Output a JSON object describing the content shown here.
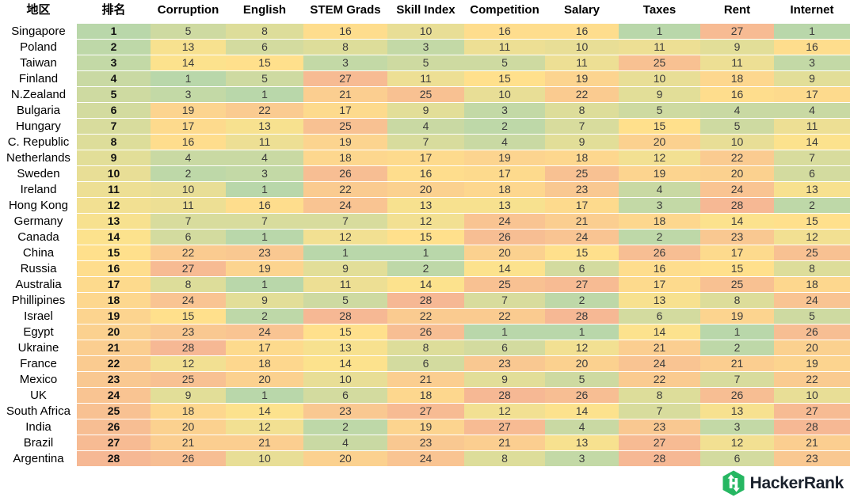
{
  "header": {
    "columns": [
      "地区",
      "排名",
      "Corruption",
      "English",
      "STEM Grads",
      "Skill Index",
      "Competition",
      "Salary",
      "Taxes",
      "Rent",
      "Internet"
    ]
  },
  "chart_data": {
    "type": "heatmap",
    "title": "",
    "row_header_label": "地区",
    "rank_label": "排名",
    "metric_columns": [
      "Corruption",
      "English",
      "STEM Grads",
      "Skill Index",
      "Competition",
      "Salary",
      "Taxes",
      "Rent",
      "Internet"
    ],
    "value_range": [
      1,
      28
    ],
    "legend": "lower rank = green, mid = yellow, high = salmon",
    "color_scale": {
      "low_color": "#b9d7aa",
      "mid_color": "#ffe28c",
      "high_color": "#f6b894",
      "low_value": 1,
      "mid_value": 14.5,
      "high_value": 28
    },
    "rows": [
      {
        "country": "Singapore",
        "rank": 1,
        "values": [
          5,
          8,
          16,
          10,
          16,
          16,
          1,
          27,
          1
        ]
      },
      {
        "country": "Poland",
        "rank": 2,
        "values": [
          13,
          6,
          8,
          3,
          11,
          10,
          11,
          9,
          16
        ]
      },
      {
        "country": "Taiwan",
        "rank": 3,
        "values": [
          14,
          15,
          3,
          5,
          5,
          11,
          25,
          11,
          3
        ]
      },
      {
        "country": "Finland",
        "rank": 4,
        "values": [
          1,
          5,
          27,
          11,
          15,
          19,
          10,
          18,
          9
        ]
      },
      {
        "country": "N.Zealand",
        "rank": 5,
        "values": [
          3,
          1,
          21,
          25,
          10,
          22,
          9,
          16,
          17
        ]
      },
      {
        "country": "Bulgaria",
        "rank": 6,
        "values": [
          19,
          22,
          17,
          9,
          3,
          8,
          5,
          4,
          4
        ]
      },
      {
        "country": "Hungary",
        "rank": 7,
        "values": [
          17,
          13,
          25,
          4,
          2,
          7,
          15,
          5,
          11
        ]
      },
      {
        "country": "C. Republic",
        "rank": 8,
        "values": [
          16,
          11,
          19,
          7,
          4,
          9,
          20,
          10,
          14
        ]
      },
      {
        "country": "Netherlands",
        "rank": 9,
        "values": [
          4,
          4,
          18,
          17,
          19,
          18,
          12,
          22,
          7
        ]
      },
      {
        "country": "Sweden",
        "rank": 10,
        "values": [
          2,
          3,
          26,
          16,
          17,
          25,
          19,
          20,
          6
        ]
      },
      {
        "country": "Ireland",
        "rank": 11,
        "values": [
          10,
          1,
          22,
          20,
          18,
          23,
          4,
          24,
          13
        ]
      },
      {
        "country": "Hong Kong",
        "rank": 12,
        "values": [
          11,
          16,
          24,
          13,
          13,
          17,
          3,
          28,
          2
        ]
      },
      {
        "country": "Germany",
        "rank": 13,
        "values": [
          7,
          7,
          7,
          12,
          24,
          21,
          18,
          14,
          15
        ]
      },
      {
        "country": "Canada",
        "rank": 14,
        "values": [
          6,
          1,
          12,
          15,
          26,
          24,
          2,
          23,
          12
        ]
      },
      {
        "country": "China",
        "rank": 15,
        "values": [
          22,
          23,
          1,
          1,
          20,
          15,
          26,
          17,
          25
        ]
      },
      {
        "country": "Russia",
        "rank": 16,
        "values": [
          27,
          19,
          9,
          2,
          14,
          6,
          16,
          15,
          8
        ]
      },
      {
        "country": "Australia",
        "rank": 17,
        "values": [
          8,
          1,
          11,
          14,
          25,
          27,
          17,
          25,
          18
        ]
      },
      {
        "country": "Phillipines",
        "rank": 18,
        "values": [
          24,
          9,
          5,
          28,
          7,
          2,
          13,
          8,
          24
        ]
      },
      {
        "country": "Israel",
        "rank": 19,
        "values": [
          15,
          2,
          28,
          22,
          22,
          28,
          6,
          19,
          5
        ]
      },
      {
        "country": "Egypt",
        "rank": 20,
        "values": [
          23,
          24,
          15,
          26,
          1,
          1,
          14,
          1,
          26
        ]
      },
      {
        "country": "Ukraine",
        "rank": 21,
        "values": [
          28,
          17,
          13,
          8,
          6,
          12,
          21,
          2,
          20
        ]
      },
      {
        "country": "France",
        "rank": 22,
        "values": [
          12,
          18,
          14,
          6,
          23,
          20,
          24,
          21,
          19
        ]
      },
      {
        "country": "Mexico",
        "rank": 23,
        "values": [
          25,
          20,
          10,
          21,
          9,
          5,
          22,
          7,
          22
        ]
      },
      {
        "country": "UK",
        "rank": 24,
        "values": [
          9,
          1,
          6,
          18,
          28,
          26,
          8,
          26,
          10
        ]
      },
      {
        "country": "South Africa",
        "rank": 25,
        "values": [
          18,
          14,
          23,
          27,
          12,
          14,
          7,
          13,
          27
        ]
      },
      {
        "country": "India",
        "rank": 26,
        "values": [
          20,
          12,
          2,
          19,
          27,
          4,
          23,
          3,
          28
        ]
      },
      {
        "country": "Brazil",
        "rank": 27,
        "values": [
          21,
          21,
          4,
          23,
          21,
          13,
          27,
          12,
          21
        ]
      },
      {
        "country": "Argentina",
        "rank": 28,
        "values": [
          26,
          10,
          20,
          24,
          8,
          3,
          28,
          6,
          23
        ]
      }
    ]
  },
  "footer": {
    "logo_text": "HackerRank",
    "logo_green": "#26b762",
    "logo_text_color": "#1b222d"
  }
}
